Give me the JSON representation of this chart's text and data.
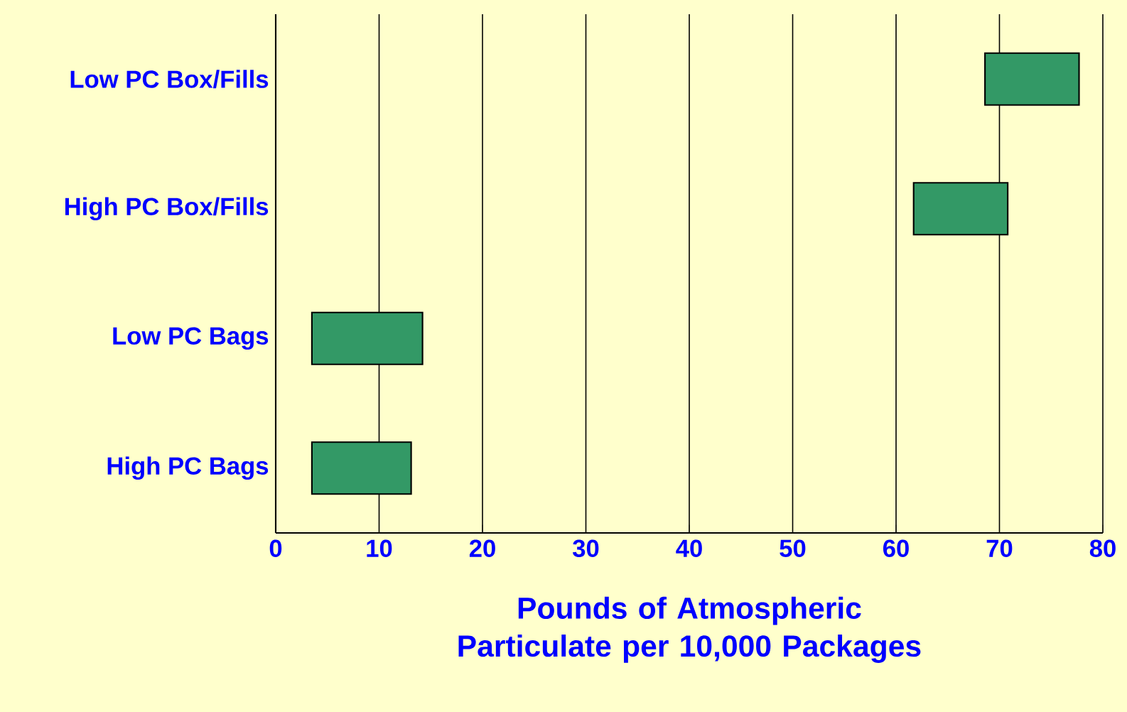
{
  "chart_data": {
    "type": "bar",
    "orientation": "horizontal",
    "xlabel": "Pounds of Atmospheric Particulate per 10,000 Packages",
    "categories": [
      "Low PC Box/Fills",
      "High PC Box/Fills",
      "Low PC Bags",
      "High PC Bags"
    ],
    "base": [
      68.6,
      61.7,
      3.5,
      3.5
    ],
    "values": [
      9.1,
      9.1,
      10.7,
      9.6
    ],
    "color": "#339966",
    "xlim": [
      0,
      80
    ],
    "xticks": [
      0,
      10,
      20,
      30,
      40,
      50,
      60,
      70,
      80
    ],
    "grid": "x"
  }
}
